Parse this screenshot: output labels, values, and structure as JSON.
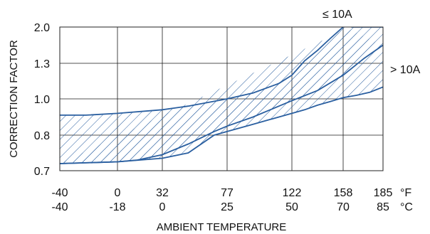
{
  "chart_data": {
    "type": "area",
    "title": "",
    "xlabel": "AMBIENT TEMPERATURE",
    "ylabel": "CORRECTION FACTOR",
    "y_ticks": [
      "2.0",
      "1.3",
      "1.0",
      "0.8",
      "0.7"
    ],
    "y_tick_values": [
      2.0,
      1.3,
      1.0,
      0.8,
      0.7
    ],
    "x_ticks_f": [
      "-40",
      "0",
      "32",
      "77",
      "122",
      "158",
      "185"
    ],
    "x_ticks_c": [
      "-40",
      "-18",
      "0",
      "25",
      "50",
      "70",
      "85"
    ],
    "x_unit_f": "°F",
    "x_unit_c": "°C",
    "x_range_c": [
      -40,
      85
    ],
    "grid": true,
    "series": [
      {
        "name": "≤ 10A",
        "upper": [
          [
            -40,
            0.91
          ],
          [
            -30,
            0.91
          ],
          [
            -18,
            0.92
          ],
          [
            0,
            0.94
          ],
          [
            10,
            0.96
          ],
          [
            25,
            1.0
          ],
          [
            35,
            1.05
          ],
          [
            45,
            1.13
          ],
          [
            50,
            1.2
          ],
          [
            55,
            1.35
          ],
          [
            60,
            1.55
          ],
          [
            65,
            1.78
          ],
          [
            70,
            2.0
          ]
        ],
        "lower": [
          [
            -40,
            0.72
          ],
          [
            -18,
            0.725
          ],
          [
            -10,
            0.73
          ],
          [
            0,
            0.745
          ],
          [
            10,
            0.775
          ],
          [
            20,
            0.82
          ],
          [
            25,
            0.85
          ],
          [
            35,
            0.9
          ],
          [
            45,
            0.96
          ],
          [
            50,
            0.99
          ],
          [
            60,
            1.07
          ],
          [
            70,
            1.2
          ],
          [
            78,
            1.4
          ],
          [
            85,
            1.65
          ]
        ]
      },
      {
        "name": "> 10A",
        "upper": [
          [
            73,
            2.0
          ],
          [
            80,
            2.0
          ],
          [
            85,
            2.0
          ]
        ],
        "lower": [
          [
            -40,
            0.72
          ],
          [
            -18,
            0.725
          ],
          [
            0,
            0.735
          ],
          [
            10,
            0.75
          ],
          [
            20,
            0.8
          ],
          [
            25,
            0.82
          ],
          [
            35,
            0.86
          ],
          [
            45,
            0.9
          ],
          [
            50,
            0.92
          ],
          [
            55,
            0.94
          ],
          [
            60,
            0.965
          ],
          [
            65,
            0.985
          ],
          [
            70,
            1.01
          ],
          [
            75,
            1.03
          ],
          [
            80,
            1.055
          ],
          [
            85,
            1.1
          ]
        ]
      }
    ],
    "annotations": [
      "≤ 10A",
      "> 10A"
    ]
  },
  "colors": {
    "curve": "#2a5fa0",
    "grid": "#1a1a1a",
    "axis": "#222222"
  }
}
